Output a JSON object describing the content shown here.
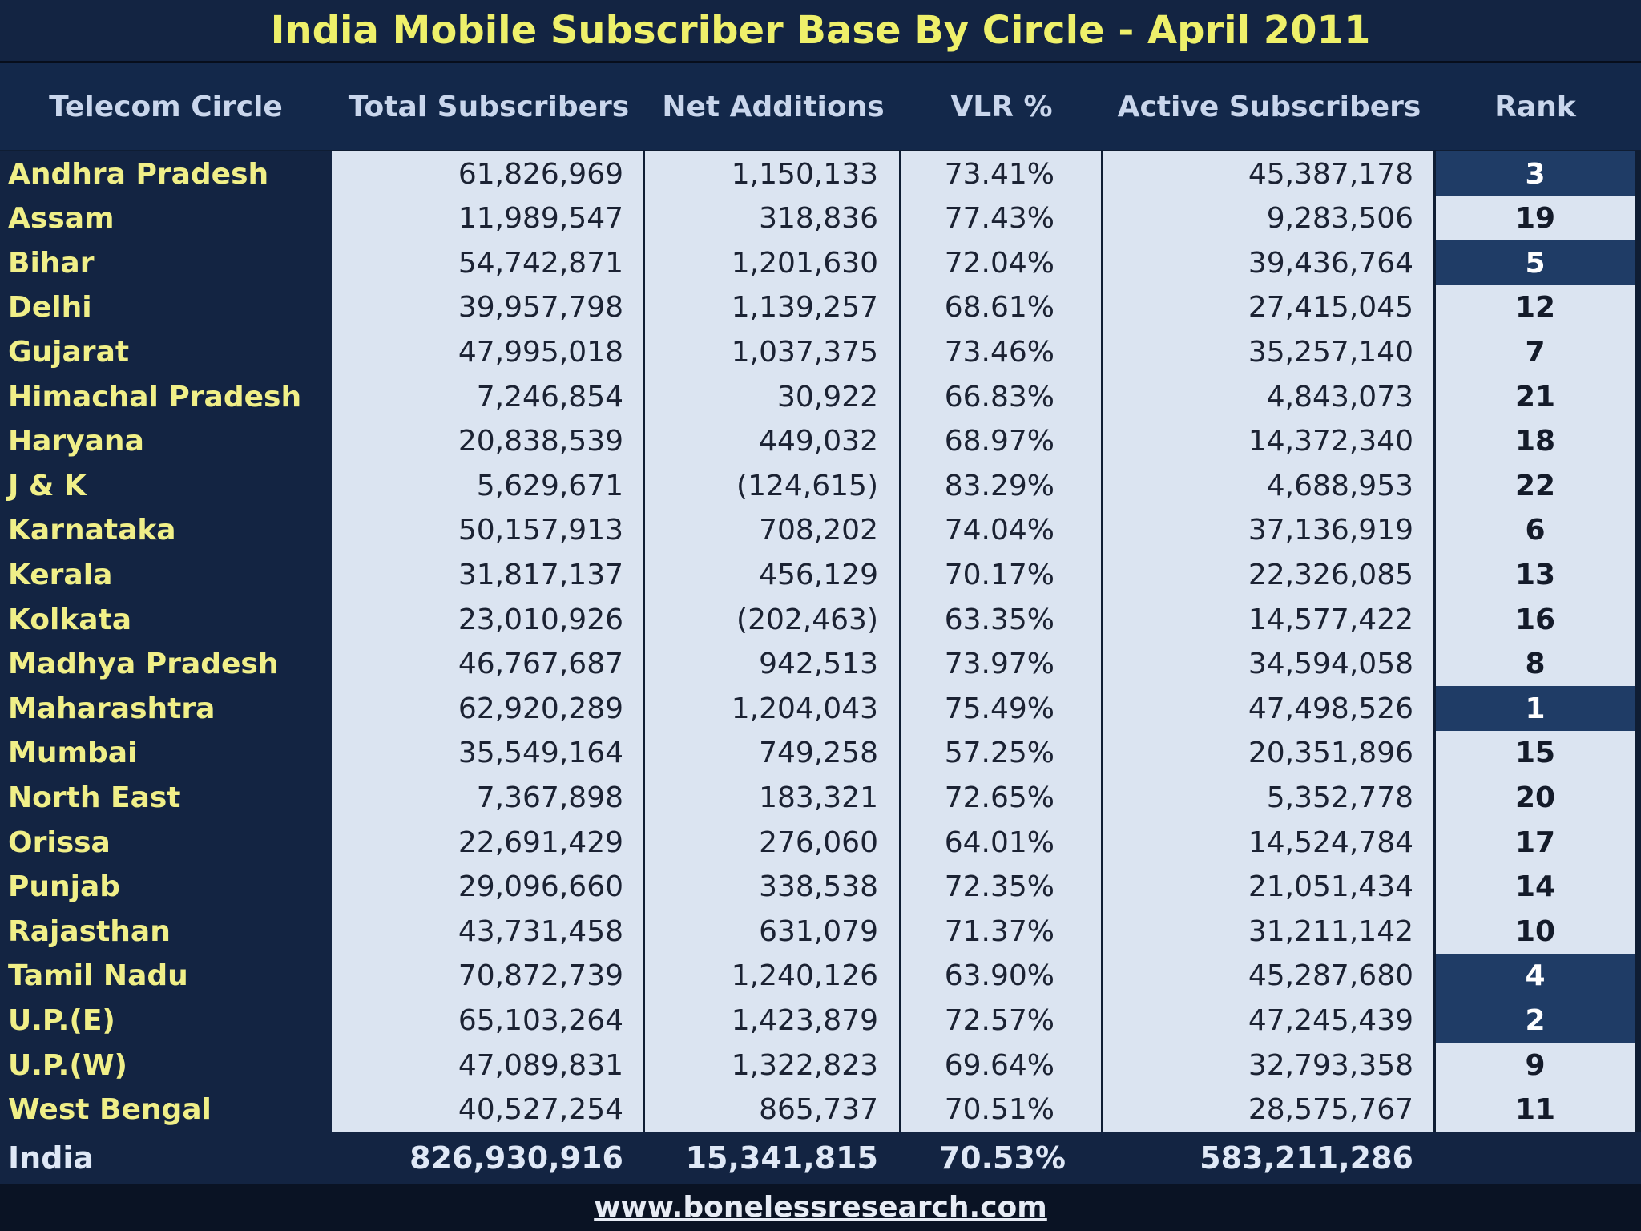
{
  "chart_data": {
    "type": "table",
    "title": "India Mobile Subscriber Base By Circle - April 2011",
    "columns": [
      "Telecom Circle",
      "Total Subscribers",
      "Net Additions",
      "VLR %",
      "Active Subscribers",
      "Rank"
    ],
    "rows": [
      {
        "circle": "Andhra Pradesh",
        "total": "61,826,969",
        "net": "1,150,133",
        "vlr": "73.41%",
        "active": "45,387,178",
        "rank": "3"
      },
      {
        "circle": "Assam",
        "total": "11,989,547",
        "net": "318,836",
        "vlr": "77.43%",
        "active": "9,283,506",
        "rank": "19"
      },
      {
        "circle": "Bihar",
        "total": "54,742,871",
        "net": "1,201,630",
        "vlr": "72.04%",
        "active": "39,436,764",
        "rank": "5"
      },
      {
        "circle": "Delhi",
        "total": "39,957,798",
        "net": "1,139,257",
        "vlr": "68.61%",
        "active": "27,415,045",
        "rank": "12"
      },
      {
        "circle": "Gujarat",
        "total": "47,995,018",
        "net": "1,037,375",
        "vlr": "73.46%",
        "active": "35,257,140",
        "rank": "7"
      },
      {
        "circle": "Himachal Pradesh",
        "total": "7,246,854",
        "net": "30,922",
        "vlr": "66.83%",
        "active": "4,843,073",
        "rank": "21"
      },
      {
        "circle": "Haryana",
        "total": "20,838,539",
        "net": "449,032",
        "vlr": "68.97%",
        "active": "14,372,340",
        "rank": "18"
      },
      {
        "circle": "J & K",
        "total": "5,629,671",
        "net": "(124,615)",
        "vlr": "83.29%",
        "active": "4,688,953",
        "rank": "22"
      },
      {
        "circle": "Karnataka",
        "total": "50,157,913",
        "net": "708,202",
        "vlr": "74.04%",
        "active": "37,136,919",
        "rank": "6"
      },
      {
        "circle": "Kerala",
        "total": "31,817,137",
        "net": "456,129",
        "vlr": "70.17%",
        "active": "22,326,085",
        "rank": "13"
      },
      {
        "circle": "Kolkata",
        "total": "23,010,926",
        "net": "(202,463)",
        "vlr": "63.35%",
        "active": "14,577,422",
        "rank": "16"
      },
      {
        "circle": "Madhya Pradesh",
        "total": "46,767,687",
        "net": "942,513",
        "vlr": "73.97%",
        "active": "34,594,058",
        "rank": "8"
      },
      {
        "circle": "Maharashtra",
        "total": "62,920,289",
        "net": "1,204,043",
        "vlr": "75.49%",
        "active": "47,498,526",
        "rank": "1"
      },
      {
        "circle": "Mumbai",
        "total": "35,549,164",
        "net": "749,258",
        "vlr": "57.25%",
        "active": "20,351,896",
        "rank": "15"
      },
      {
        "circle": "North East",
        "total": "7,367,898",
        "net": "183,321",
        "vlr": "72.65%",
        "active": "5,352,778",
        "rank": "20"
      },
      {
        "circle": "Orissa",
        "total": "22,691,429",
        "net": "276,060",
        "vlr": "64.01%",
        "active": "14,524,784",
        "rank": "17"
      },
      {
        "circle": "Punjab",
        "total": "29,096,660",
        "net": "338,538",
        "vlr": "72.35%",
        "active": "21,051,434",
        "rank": "14"
      },
      {
        "circle": "Rajasthan",
        "total": "43,731,458",
        "net": "631,079",
        "vlr": "71.37%",
        "active": "31,211,142",
        "rank": "10"
      },
      {
        "circle": "Tamil Nadu",
        "total": "70,872,739",
        "net": "1,240,126",
        "vlr": "63.90%",
        "active": "45,287,680",
        "rank": "4"
      },
      {
        "circle": "U.P.(E)",
        "total": "65,103,264",
        "net": "1,423,879",
        "vlr": "72.57%",
        "active": "47,245,439",
        "rank": "2"
      },
      {
        "circle": "U.P.(W)",
        "total": "47,089,831",
        "net": "1,322,823",
        "vlr": "69.64%",
        "active": "32,793,358",
        "rank": "9"
      },
      {
        "circle": "West Bengal",
        "total": "40,527,254",
        "net": "865,737",
        "vlr": "70.51%",
        "active": "28,575,767",
        "rank": "11"
      }
    ],
    "total_row": {
      "circle": "India",
      "total": "826,930,916",
      "net": "15,341,815",
      "vlr": "70.53%",
      "active": "583,211,286"
    },
    "highlighted_ranks": [
      "1",
      "2",
      "3",
      "4",
      "5"
    ],
    "colors": {
      "dark_navy": "#132442",
      "light_cell": "#dbe4f1",
      "title_yellow": "#eef06a",
      "highlight_rank": "#1f3c66"
    }
  },
  "footer": {
    "url": "www.bonelessresearch.com"
  }
}
